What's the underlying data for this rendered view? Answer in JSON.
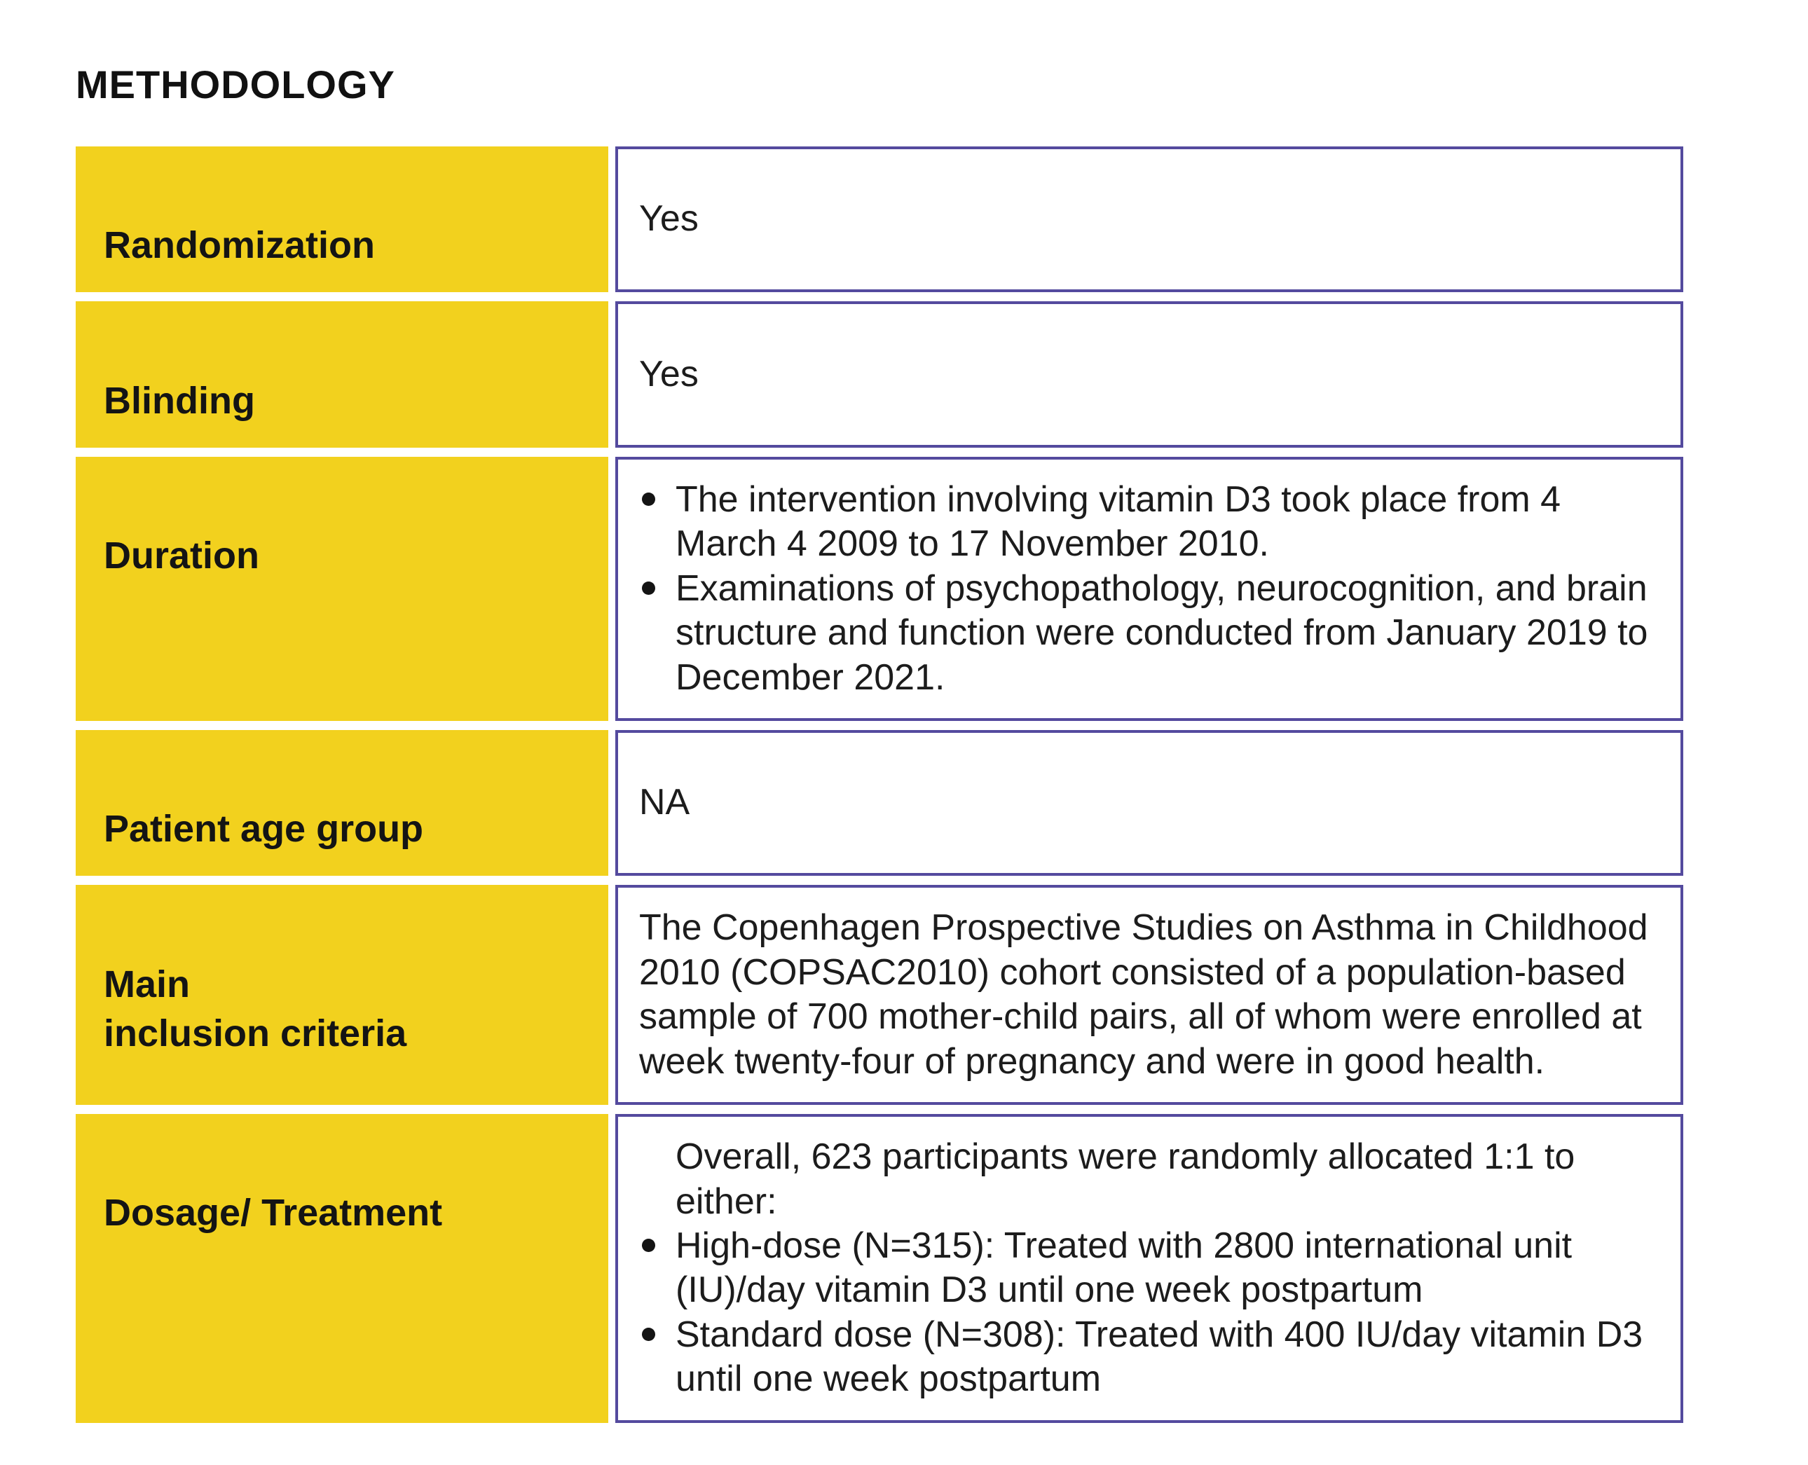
{
  "page": {
    "title": "METHODOLOGY"
  },
  "colors": {
    "label_background": "#F2D11E",
    "value_border": "#544A9E",
    "text": "#1C1C1C"
  },
  "table": {
    "rows": [
      {
        "label": "Randomization",
        "value": "Yes"
      },
      {
        "label": "Blinding",
        "value": "Yes"
      },
      {
        "label": "Duration",
        "bullets": [
          "The intervention involving vitamin D3 took place from 4 March 4 2009 to 17 November 2010.",
          "Examinations of psychopathology, neurocognition, and brain structure and function were conducted from January 2019 to December 2021."
        ]
      },
      {
        "label": "Patient age group",
        "value": "NA"
      },
      {
        "label": "Main\ninclusion criteria",
        "value": "The Copenhagen Prospective Studies on Asthma in Childhood 2010 (COPSAC2010) cohort consisted of a population-based sample of 700 mother-child pairs, all of whom were enrolled at week twenty-four of pregnancy and were in good health."
      },
      {
        "label": "Dosage/ Treatment",
        "intro": "Overall, 623 participants were randomly allocated 1:1 to either:",
        "bullets": [
          "High-dose (N=315): Treated with 2800 international unit (IU)/day vitamin D3 until one week postpartum",
          "Standard dose (N=308): Treated with 400 IU/day vitamin D3 until one week postpartum"
        ]
      }
    ]
  }
}
